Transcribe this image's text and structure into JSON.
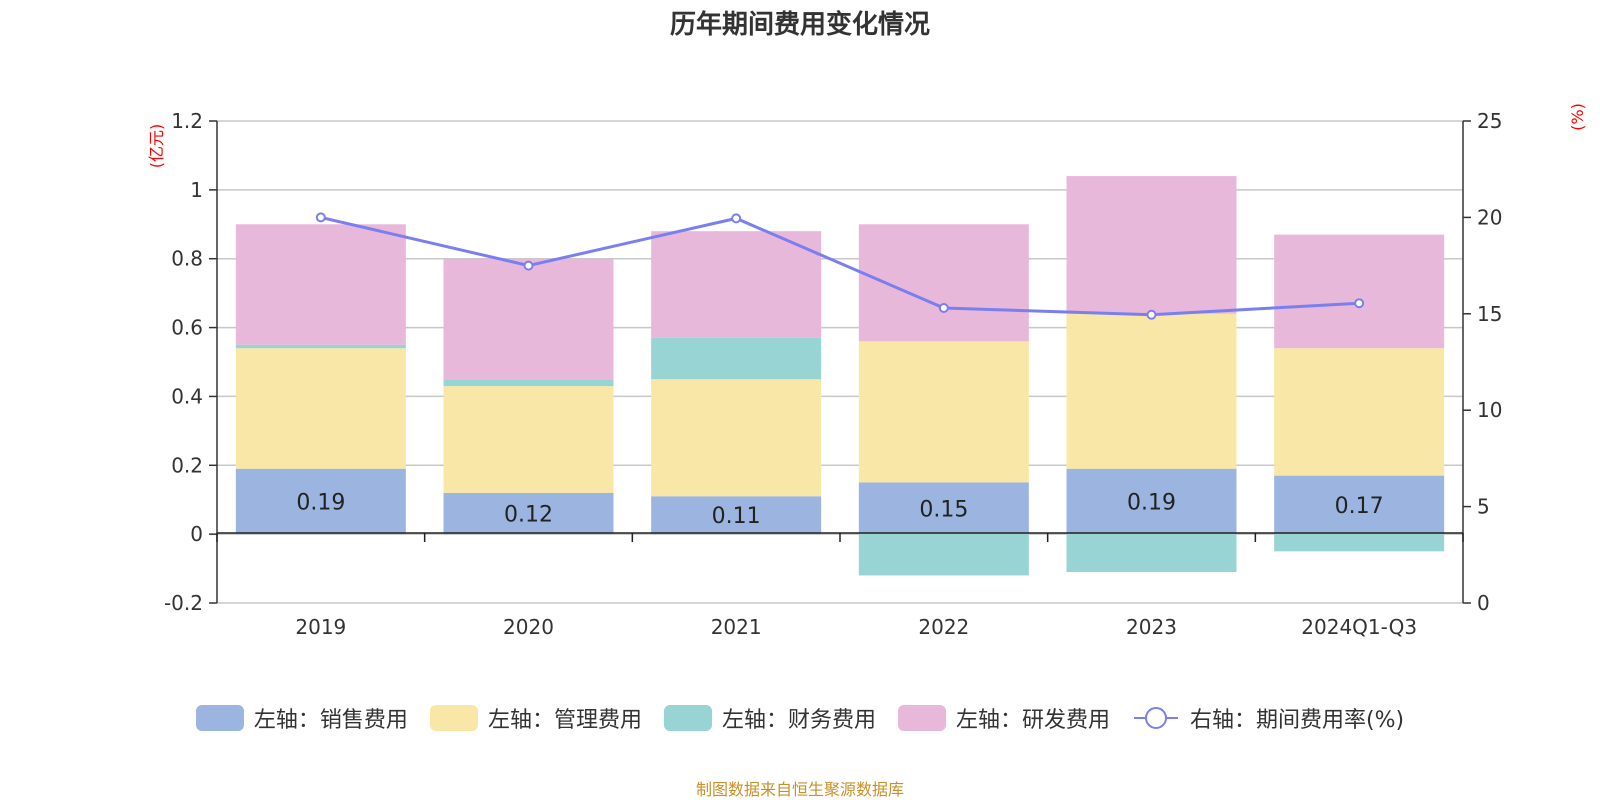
{
  "title": "历年期间费用变化情况",
  "source_note": "制图数据来自恒生聚源数据库",
  "colors": {
    "sales": "#9bb5e0",
    "admin": "#f8e7a6",
    "finance": "#97d4d3",
    "rd": "#e7b8da",
    "rate": "#7a7ff0",
    "unit_label": "#ff0000",
    "source": "#c8902a"
  },
  "legend": [
    {
      "key": "sales",
      "label": "左轴：销售费用"
    },
    {
      "key": "admin",
      "label": "左轴：管理费用"
    },
    {
      "key": "finance",
      "label": "左轴：财务费用"
    },
    {
      "key": "rd",
      "label": "左轴：研发费用"
    },
    {
      "key": "rate",
      "label": "右轴：期间费用率(%)"
    }
  ],
  "chart_data": {
    "type": "bar",
    "stacked": true,
    "title": "历年期间费用变化情况",
    "categories": [
      "2019",
      "2020",
      "2021",
      "2022",
      "2023",
      "2024Q1-Q3"
    ],
    "left_axis": {
      "unit": "(亿元)",
      "range": [
        -0.2,
        1.2
      ],
      "ticks": [
        "-0.2",
        "0",
        "0.2",
        "0.4",
        "0.6",
        "0.8",
        "1",
        "1.2"
      ]
    },
    "right_axis": {
      "unit": "(%)",
      "range": [
        0,
        25
      ],
      "ticks": [
        "0",
        "5",
        "10",
        "15",
        "20",
        "25"
      ]
    },
    "series": [
      {
        "key": "sales",
        "name": "左轴：销售费用",
        "axis": "left",
        "type": "bar",
        "values": [
          0.19,
          0.12,
          0.11,
          0.15,
          0.19,
          0.17
        ],
        "labels": [
          "0.19",
          "0.12",
          "0.11",
          "0.15",
          "0.19",
          "0.17"
        ]
      },
      {
        "key": "admin",
        "name": "左轴：管理费用",
        "axis": "left",
        "type": "bar",
        "values": [
          0.35,
          0.31,
          0.34,
          0.41,
          0.45,
          0.37
        ]
      },
      {
        "key": "finance",
        "name": "左轴：财务费用",
        "axis": "left",
        "type": "bar",
        "values": [
          0.01,
          0.02,
          0.12,
          -0.12,
          -0.11,
          -0.05
        ]
      },
      {
        "key": "rd",
        "name": "左轴：研发费用",
        "axis": "left",
        "type": "bar",
        "values": [
          0.35,
          0.35,
          0.31,
          0.34,
          0.4,
          0.33
        ]
      },
      {
        "key": "rate",
        "name": "右轴：期间费用率(%)",
        "axis": "right",
        "type": "line",
        "values": [
          20.0,
          17.5,
          19.95,
          15.3,
          14.95,
          15.55
        ]
      }
    ]
  }
}
